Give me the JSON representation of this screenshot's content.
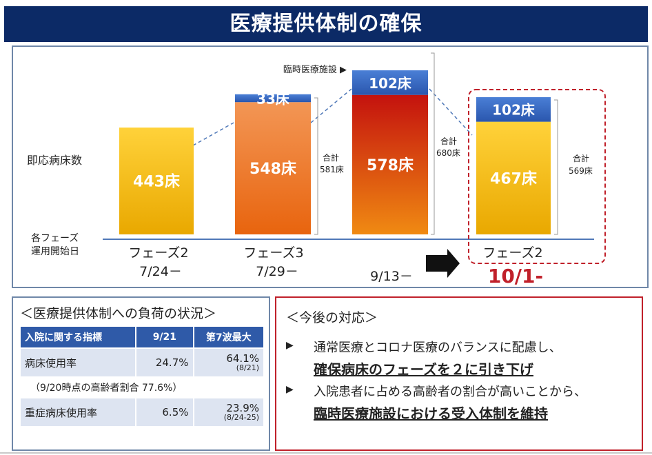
{
  "title": "医療提供体制の確保",
  "chart_data": {
    "type": "bar",
    "stacked": true,
    "y_label": "即応病床数",
    "baseline_label_line1": "各フェーズ",
    "baseline_label_line2": "運用開始日",
    "categories": [
      {
        "phase": "フェーズ2",
        "date": "7/24－",
        "segments": [
          443
        ],
        "highlighted": false
      },
      {
        "phase": "フェーズ3",
        "date": "7/29－",
        "segments": [
          548,
          33
        ],
        "total_label": "合計",
        "total_value": "581床",
        "highlighted": false
      },
      {
        "phase": "",
        "date": "9/13－",
        "segments": [
          578,
          102
        ],
        "total_label": "合計",
        "total_value": "680床",
        "highlighted": false
      },
      {
        "phase": "フェーズ2",
        "date": "10/1-",
        "segments": [
          467,
          102
        ],
        "total_label": "合計",
        "total_value": "569床",
        "highlighted": true
      }
    ],
    "series": [
      {
        "name": "即応病床",
        "values": [
          443,
          548,
          578,
          467
        ]
      },
      {
        "name": "臨時医療施設",
        "values": [
          0,
          33,
          102,
          102
        ]
      }
    ],
    "unit": "床",
    "ylim": [
      0,
      700
    ],
    "annotation": "臨時医療施設 ▶",
    "colors": {
      "yellow": "#f2b90c",
      "orange": "#ec7a1e",
      "red": "#d6141a",
      "blue": "#3568c2",
      "highlight": "#c0202a"
    }
  },
  "load_status": {
    "title": "＜医療提供体制への負荷の状況＞",
    "headers": [
      "入院に関する指標",
      "9/21",
      "第7波最大"
    ],
    "rows": [
      {
        "label": "病床使用率",
        "current": "24.7%",
        "peak": "64.1%",
        "peak_date": "(8/21)"
      },
      {
        "label": "重症病床使用率",
        "current": "6.5%",
        "peak": "23.9%",
        "peak_date": "(8/24-25)"
      }
    ],
    "note": "（9/20時点の高齢者割合 77.6%）"
  },
  "future": {
    "heading": "＜今後の対応＞",
    "items": [
      {
        "bullet": "▶",
        "text": "通常医療とコロナ医療のバランスに配慮し、",
        "emphasis": "確保病床のフェーズを２に引き下げ"
      },
      {
        "bullet": "▶",
        "text": "入院患者に占める高齢者の割合が高いことから、",
        "emphasis": "臨時医療施設における受入体制を維持"
      }
    ]
  }
}
